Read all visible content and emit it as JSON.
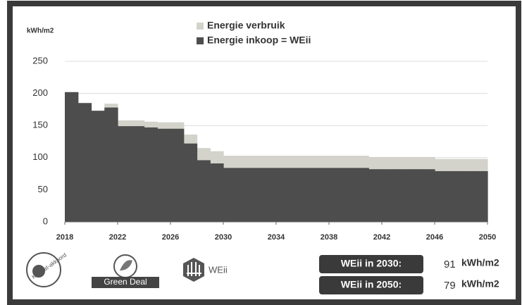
{
  "chart_data": {
    "type": "step-area",
    "y_label": "kWh/m2",
    "x": [
      2018,
      2019,
      2020,
      2021,
      2022,
      2023,
      2024,
      2025,
      2026,
      2027,
      2028,
      2029,
      2030,
      2031,
      2032,
      2033,
      2034,
      2035,
      2036,
      2037,
      2038,
      2039,
      2040,
      2041,
      2042,
      2043,
      2044,
      2045,
      2046,
      2047,
      2048,
      2049
    ],
    "series": [
      {
        "name": "Energie verbruik",
        "color": "#d3d3cb",
        "values": [
          202,
          185,
          173,
          184,
          158,
          158,
          156,
          155,
          155,
          136,
          115,
          110,
          103,
          103,
          103,
          103,
          103,
          103,
          103,
          103,
          103,
          103,
          103,
          101,
          101,
          101,
          101,
          101,
          98,
          98,
          98,
          98
        ]
      },
      {
        "name": "Energie inkoop = WEii",
        "color": "#4d4d4d",
        "values": [
          202,
          185,
          173,
          178,
          149,
          149,
          147,
          145,
          145,
          122,
          96,
          91,
          84,
          84,
          84,
          84,
          84,
          84,
          84,
          84,
          84,
          84,
          84,
          82,
          82,
          82,
          82,
          82,
          79,
          79,
          79,
          79
        ]
      }
    ],
    "xlim": [
      2018,
      2050
    ],
    "xticks": [
      2018,
      2022,
      2026,
      2030,
      2034,
      2038,
      2042,
      2046,
      2050
    ],
    "ylim": [
      0,
      250
    ],
    "yticks": [
      0,
      50,
      100,
      150,
      200,
      250
    ],
    "grid": true,
    "annotations": [
      {
        "label": "WEii in 2030:",
        "value": 91,
        "unit": "kWh/m2"
      },
      {
        "label": "WEii in 2050:",
        "value": 79,
        "unit": "kWh/m2"
      }
    ],
    "logos": [
      "Klimaat-akkoord",
      "Green Deal",
      "WEii"
    ]
  }
}
